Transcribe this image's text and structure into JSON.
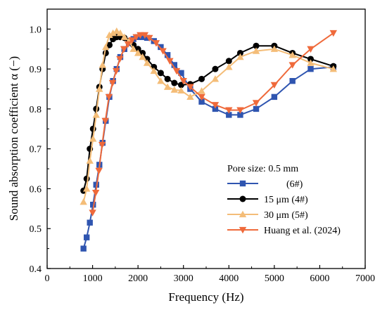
{
  "chart_data": {
    "type": "line",
    "xlabel": "Frequency (Hz)",
    "ylabel": "Sound absorption coefficient α (−)",
    "xlim": [
      0,
      7000
    ],
    "ylim": [
      0.4,
      1.05
    ],
    "xticks": [
      "0",
      "1000",
      "2000",
      "3000",
      "4000",
      "5000",
      "6000",
      "7000"
    ],
    "yticks": [
      "0.4",
      "0.5",
      "0.6",
      "0.7",
      "0.8",
      "0.9",
      "1.0"
    ],
    "legend": {
      "title": "Pore size: 0.5 mm",
      "placement": "bottom-right"
    },
    "series": [
      {
        "name": "(6#)",
        "color": "#2f55b0",
        "marker": "square",
        "x": [
          800,
          870,
          940,
          1010,
          1080,
          1150,
          1220,
          1290,
          1370,
          1450,
          1530,
          1610,
          1700,
          1800,
          1900,
          2000,
          2100,
          2200,
          2350,
          2500,
          2650,
          2800,
          2950,
          3150,
          3400,
          3700,
          4000,
          4250,
          4600,
          5000,
          5400,
          5800,
          6300
        ],
        "y": [
          0.45,
          0.478,
          0.515,
          0.56,
          0.61,
          0.66,
          0.715,
          0.77,
          0.83,
          0.87,
          0.9,
          0.93,
          0.95,
          0.965,
          0.975,
          0.98,
          0.98,
          0.978,
          0.97,
          0.955,
          0.935,
          0.91,
          0.89,
          0.85,
          0.818,
          0.8,
          0.785,
          0.785,
          0.8,
          0.83,
          0.87,
          0.9,
          0.905
        ]
      },
      {
        "name": "15 μm (4#)",
        "color": "#000000",
        "marker": "circle",
        "x": [
          800,
          870,
          940,
          1010,
          1080,
          1150,
          1220,
          1290,
          1370,
          1450,
          1530,
          1610,
          1700,
          1800,
          1900,
          2000,
          2100,
          2200,
          2350,
          2500,
          2650,
          2800,
          2950,
          3150,
          3400,
          3700,
          4000,
          4250,
          4600,
          5000,
          5400,
          5800,
          6300
        ],
        "y": [
          0.595,
          0.625,
          0.7,
          0.75,
          0.8,
          0.855,
          0.9,
          0.94,
          0.96,
          0.975,
          0.98,
          0.98,
          0.978,
          0.97,
          0.96,
          0.95,
          0.94,
          0.925,
          0.905,
          0.89,
          0.875,
          0.865,
          0.86,
          0.862,
          0.875,
          0.9,
          0.92,
          0.94,
          0.958,
          0.958,
          0.94,
          0.925,
          0.907
        ]
      },
      {
        "name": "30 μm (5#)",
        "color": "#f4bd78",
        "marker": "triangle-up",
        "x": [
          800,
          870,
          940,
          1010,
          1080,
          1150,
          1220,
          1290,
          1370,
          1450,
          1530,
          1610,
          1700,
          1800,
          1900,
          2000,
          2100,
          2200,
          2350,
          2500,
          2650,
          2800,
          2950,
          3150,
          3400,
          3700,
          4000,
          4250,
          4600,
          5000,
          5400,
          5800,
          6300
        ],
        "y": [
          0.567,
          0.6,
          0.67,
          0.725,
          0.785,
          0.85,
          0.91,
          0.955,
          0.985,
          0.99,
          0.995,
          0.99,
          0.98,
          0.97,
          0.95,
          0.94,
          0.93,
          0.915,
          0.895,
          0.87,
          0.855,
          0.848,
          0.846,
          0.83,
          0.845,
          0.875,
          0.905,
          0.93,
          0.945,
          0.95,
          0.935,
          0.915,
          0.9
        ]
      },
      {
        "name": "Huang et al. (2024)",
        "color": "#ef6a3b",
        "marker": "triangle-down",
        "x": [
          1000,
          1070,
          1140,
          1210,
          1280,
          1360,
          1440,
          1520,
          1600,
          1690,
          1780,
          1870,
          1960,
          2050,
          2150,
          2250,
          2400,
          2550,
          2700,
          2850,
          3000,
          3150,
          3400,
          3700,
          4000,
          4250,
          4600,
          5000,
          5400,
          5800,
          6300
        ],
        "y": [
          0.54,
          0.59,
          0.645,
          0.71,
          0.77,
          0.83,
          0.865,
          0.895,
          0.925,
          0.95,
          0.962,
          0.972,
          0.98,
          0.985,
          0.985,
          0.978,
          0.965,
          0.945,
          0.92,
          0.895,
          0.87,
          0.855,
          0.83,
          0.81,
          0.797,
          0.797,
          0.815,
          0.86,
          0.91,
          0.95,
          0.99
        ]
      }
    ]
  }
}
